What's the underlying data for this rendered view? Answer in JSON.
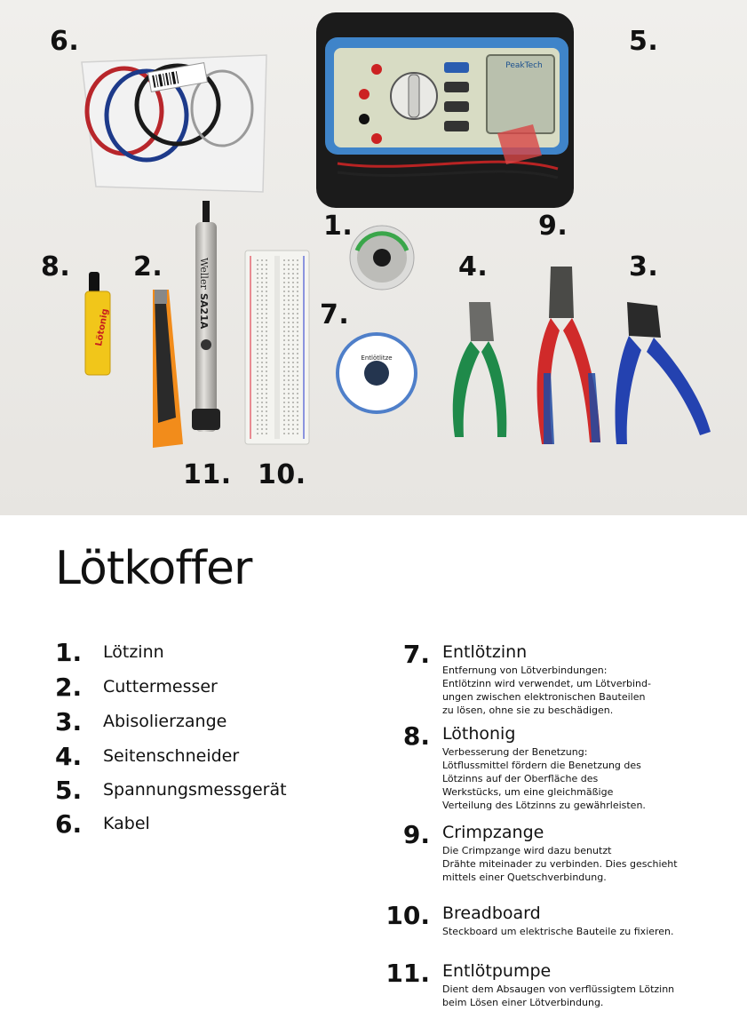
{
  "photo_labels": [
    "6.",
    "5.",
    "1.",
    "9.",
    "8.",
    "2.",
    "4.",
    "3.",
    "7.",
    "11.",
    "10."
  ],
  "product_text": {
    "multimeter_brand": "PeakTech",
    "pump_brand": "Weller",
    "pump_model": "SA21A",
    "solder_label": "Entlötlitze",
    "flux_label": "Lötonig"
  },
  "title": "Lötkoffer",
  "left_list": [
    {
      "num": "1.",
      "label": "Lötzinn"
    },
    {
      "num": "2.",
      "label": "Cuttermesser"
    },
    {
      "num": "3.",
      "label": "Abisolierzange"
    },
    {
      "num": "4.",
      "label": "Seitenschneider"
    },
    {
      "num": "5.",
      "label": "Spannungsmessgerät"
    },
    {
      "num": "6.",
      "label": "Kabel"
    }
  ],
  "right_list": [
    {
      "num": "7.",
      "label": "Entlötzinn",
      "lines": [
        "Entfernung von Lötverbindungen:",
        "Entlötzinn wird verwendet, um Lötverbind-",
        "ungen zwischen elektronischen Bauteilen",
        "zu lösen, ohne sie zu beschädigen."
      ]
    },
    {
      "num": "8.",
      "label": "Löthonig",
      "lines": [
        "Verbesserung der Benetzung:",
        "Lötflussmittel fördern die Benetzung des",
        "Lötzinns auf der Oberfläche des",
        "Werkstücks, um eine gleichmäßige",
        "Verteilung des Lötzinns zu gewährleisten."
      ]
    },
    {
      "num": "9.",
      "label": "Crimpzange",
      "lines": [
        "Die Crimpzange wird dazu benutzt",
        "Drähte miteinader zu verbinden. Dies geschieht",
        "mittels einer Quetschverbindung."
      ]
    },
    {
      "num": "10.",
      "label": "Breadboard",
      "lines": [
        "Steckboard um elektrische Bauteile zu fixieren."
      ]
    },
    {
      "num": "11.",
      "label": "Entlötpumpe",
      "lines": [
        "Dient dem Absaugen von verflüssigtem Lötzinn",
        "beim Lösen einer Lötverbindung."
      ]
    }
  ]
}
